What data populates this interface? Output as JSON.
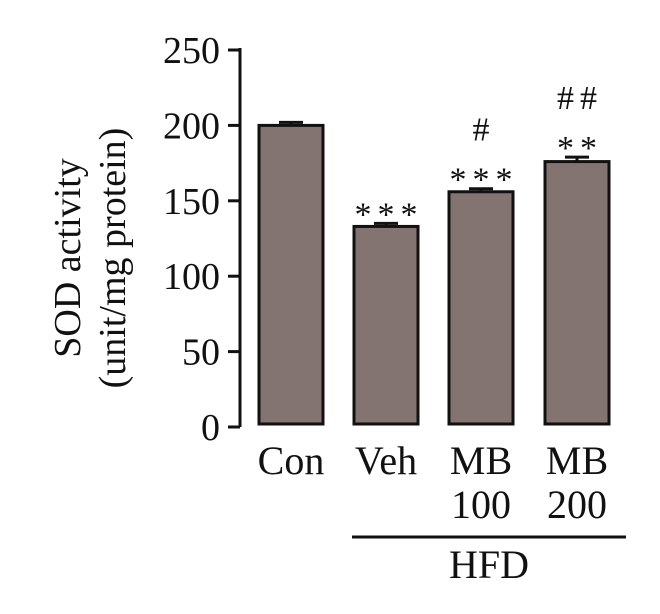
{
  "chart_data": {
    "type": "bar",
    "title": "",
    "ylabel_lines": [
      "SOD activity",
      "(unit/mg protein)"
    ],
    "xlabel": "",
    "ylim": [
      0,
      250
    ],
    "yticks": [
      0,
      50,
      100,
      150,
      200,
      250
    ],
    "categories": [
      {
        "line1": "Con",
        "line2": ""
      },
      {
        "line1": "Veh",
        "line2": ""
      },
      {
        "line1": "MB",
        "line2": "100"
      },
      {
        "line1": "MB",
        "line2": "200"
      }
    ],
    "values": [
      200,
      133,
      156,
      176
    ],
    "errors": [
      2,
      2,
      2,
      3
    ],
    "annotations_top": [
      "",
      "",
      "#",
      "##"
    ],
    "annotations_bottom": [
      "",
      "***",
      "***",
      "**"
    ],
    "group_label": "HFD",
    "bar_color": "#847471",
    "grid": false
  }
}
